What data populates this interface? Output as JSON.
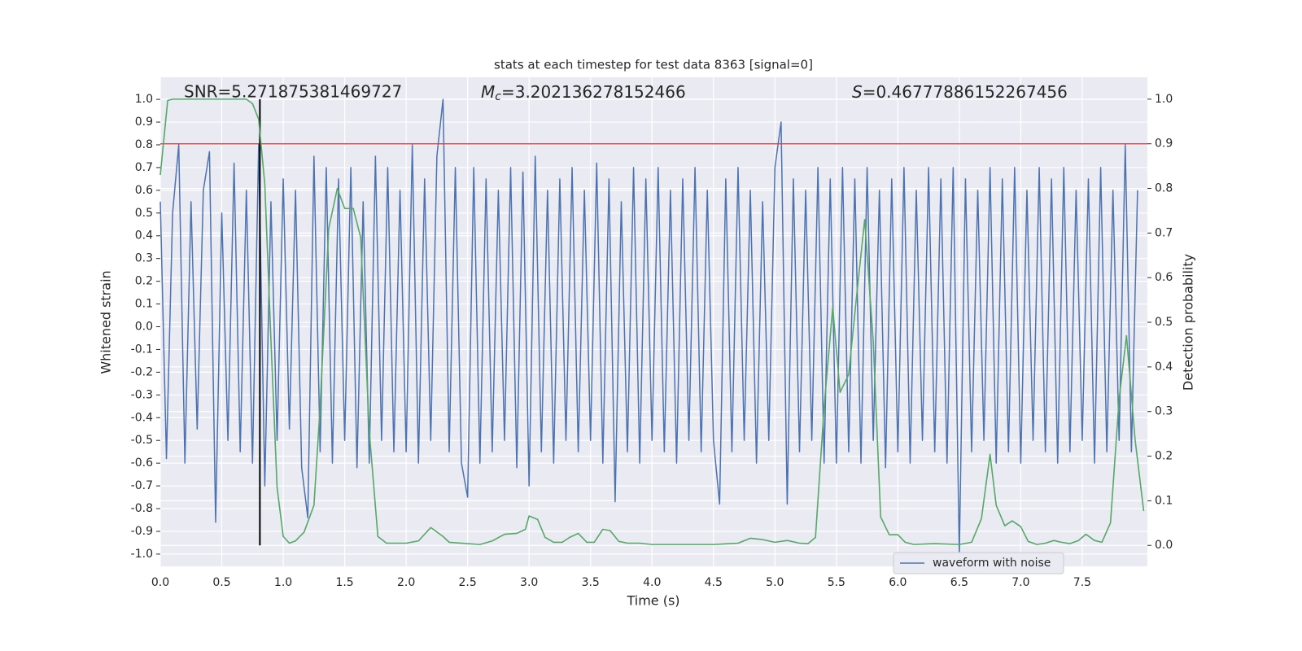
{
  "chart_data": {
    "type": "line",
    "title": "stats at each timestep for test data 8363 [signal=0]",
    "xlabel": "Time (s)",
    "ylabel": "Whitened strain",
    "y2label": "Detection probability",
    "annotations": [
      {
        "text": "SNR=5.271875381469727"
      },
      {
        "symbol": "M",
        "subscript": "c",
        "text": "=3.202136278152466"
      },
      {
        "symbol": "S",
        "text": "=0.46777886152267456"
      }
    ],
    "xlim": [
      0,
      8.03
    ],
    "ylim": [
      -1.054,
      1.097
    ],
    "y2lim": [
      -0.047,
      1.049
    ],
    "xticks": [
      {
        "value": 0,
        "label": "0.0"
      },
      0.5,
      {
        "value": 1,
        "label": "1.0"
      },
      1.5,
      {
        "value": 2,
        "label": "2.0"
      },
      2.5,
      {
        "value": 3,
        "label": "3.0"
      },
      3.5,
      {
        "value": 4,
        "label": "4.0"
      },
      4.5,
      {
        "value": 5,
        "label": "5.0"
      },
      5.5,
      {
        "value": 6,
        "label": "6.0"
      },
      6.5,
      {
        "value": 7,
        "label": "7.0"
      },
      7.5
    ],
    "yticks": [
      {
        "value": -1,
        "label": "-1.0"
      },
      -0.9,
      -0.8,
      -0.7,
      -0.6,
      -0.5,
      -0.4,
      -0.3,
      -0.2,
      -0.1,
      {
        "value": 0,
        "label": "0.0"
      },
      0.1,
      0.2,
      0.3,
      0.4,
      0.5,
      0.6,
      0.7,
      0.8,
      0.9,
      {
        "value": 1,
        "label": "1.0"
      }
    ],
    "y2ticks": [
      {
        "value": 0,
        "label": "0.0"
      },
      0.1,
      0.2,
      0.3,
      0.4,
      0.5,
      0.6,
      0.7,
      0.8,
      0.9,
      {
        "value": 1,
        "label": "1.0"
      }
    ],
    "grid": true,
    "legend": "lower right",
    "series": [
      {
        "name": "waveform with noise",
        "color": "#4c72b0",
        "x": [
          0,
          0.05,
          0.1,
          0.15,
          0.2,
          0.25,
          0.3,
          0.35,
          0.4,
          0.45,
          0.5,
          0.55,
          0.6,
          0.65,
          0.7,
          0.75,
          0.8,
          0.85,
          0.9,
          0.95,
          1,
          1.05,
          1.1,
          1.15,
          1.2,
          1.25,
          1.3,
          1.35,
          1.4,
          1.45,
          1.5,
          1.55,
          1.6,
          1.65,
          1.7,
          1.75,
          1.8,
          1.85,
          1.9,
          1.95,
          2,
          2.05,
          2.1,
          2.15,
          2.2,
          2.25,
          2.3,
          2.35,
          2.4,
          2.45,
          2.5,
          2.55,
          2.6,
          2.65,
          2.7,
          2.75,
          2.8,
          2.85,
          2.9,
          2.95,
          3,
          3.05,
          3.1,
          3.15,
          3.2,
          3.25,
          3.3,
          3.35,
          3.4,
          3.45,
          3.5,
          3.55,
          3.6,
          3.65,
          3.7,
          3.75,
          3.8,
          3.85,
          3.9,
          3.95,
          4,
          4.05,
          4.1,
          4.15,
          4.2,
          4.25,
          4.3,
          4.35,
          4.4,
          4.45,
          4.5,
          4.55,
          4.6,
          4.65,
          4.7,
          4.75,
          4.8,
          4.85,
          4.9,
          4.95,
          5,
          5.05,
          5.1,
          5.15,
          5.2,
          5.25,
          5.3,
          5.35,
          5.4,
          5.45,
          5.5,
          5.55,
          5.6,
          5.65,
          5.7,
          5.75,
          5.8,
          5.85,
          5.9,
          5.95,
          6,
          6.05,
          6.1,
          6.15,
          6.2,
          6.25,
          6.3,
          6.35,
          6.4,
          6.45,
          6.5,
          6.55,
          6.6,
          6.65,
          6.7,
          6.75,
          6.8,
          6.85,
          6.9,
          6.95,
          7,
          7.05,
          7.1,
          7.15,
          7.2,
          7.25,
          7.3,
          7.35,
          7.4,
          7.45,
          7.5,
          7.55,
          7.6,
          7.65,
          7.7,
          7.75,
          7.8,
          7.85,
          7.9,
          7.95
        ],
        "values": [
          0.55,
          -0.58,
          0.5,
          0.8,
          -0.6,
          0.55,
          -0.45,
          0.6,
          0.77,
          -0.86,
          0.5,
          -0.5,
          0.72,
          -0.55,
          0.6,
          -0.6,
          0.8,
          -0.7,
          0.55,
          -0.5,
          0.65,
          -0.45,
          0.6,
          -0.62,
          -0.84,
          0.75,
          -0.55,
          0.7,
          -0.6,
          0.65,
          -0.5,
          0.7,
          -0.62,
          0.55,
          -0.6,
          0.75,
          -0.5,
          0.7,
          -0.55,
          0.6,
          -0.55,
          0.8,
          -0.6,
          0.65,
          -0.5,
          0.75,
          1.0,
          -0.55,
          0.7,
          -0.6,
          -0.75,
          0.7,
          -0.6,
          0.65,
          -0.55,
          0.6,
          -0.5,
          0.7,
          -0.62,
          0.68,
          -0.7,
          0.75,
          -0.55,
          0.6,
          -0.6,
          0.65,
          -0.5,
          0.7,
          -0.55,
          0.6,
          -0.5,
          0.72,
          -0.6,
          0.65,
          -0.77,
          0.55,
          -0.55,
          0.7,
          -0.6,
          0.65,
          -0.5,
          0.7,
          -0.55,
          0.6,
          -0.6,
          0.65,
          -0.5,
          0.7,
          -0.55,
          0.6,
          -0.5,
          -0.78,
          0.65,
          -0.55,
          0.7,
          -0.5,
          0.6,
          -0.6,
          0.55,
          -0.5,
          0.7,
          0.9,
          -0.78,
          0.65,
          -0.55,
          0.6,
          -0.5,
          0.7,
          -0.6,
          0.65,
          -0.6,
          0.7,
          -0.55,
          0.65,
          -0.6,
          0.7,
          -0.5,
          0.6,
          -0.62,
          0.65,
          -0.55,
          0.7,
          -0.6,
          0.6,
          -0.5,
          0.7,
          -0.55,
          0.65,
          -0.6,
          0.7,
          -1.0,
          0.65,
          -0.55,
          0.6,
          -0.5,
          0.7,
          -0.6,
          0.65,
          -0.55,
          0.7,
          -0.6,
          0.6,
          -0.5,
          0.7,
          -0.55,
          0.65,
          -0.6,
          0.7,
          -0.55,
          0.6,
          -0.5,
          0.65,
          -0.6,
          0.7,
          -0.55,
          0.6,
          -0.5,
          0.8,
          -0.55,
          0.6
        ]
      },
      {
        "name": null,
        "color": "#55a868",
        "axis": "y2",
        "x": [
          0,
          0.06,
          0.1,
          0.7,
          0.75,
          0.8,
          0.85,
          0.9,
          0.95,
          1,
          1.05,
          1.1,
          1.17,
          1.25,
          1.3,
          1.37,
          1.44,
          1.5,
          1.57,
          1.63,
          1.7,
          1.77,
          1.84,
          2,
          2.1,
          2.2,
          2.3,
          2.35,
          2.6,
          2.7,
          2.8,
          2.9,
          2.97,
          3,
          3.07,
          3.13,
          3.2,
          3.27,
          3.33,
          3.4,
          3.47,
          3.53,
          3.6,
          3.66,
          3.73,
          3.8,
          3.9,
          4,
          4.5,
          4.7,
          4.8,
          4.9,
          5,
          5.1,
          5.2,
          5.27,
          5.33,
          5.4,
          5.47,
          5.53,
          5.6,
          5.66,
          5.73,
          5.8,
          5.86,
          5.93,
          6,
          6.06,
          6.13,
          6.3,
          6.5,
          6.6,
          6.68,
          6.75,
          6.8,
          6.87,
          6.93,
          7,
          7.06,
          7.13,
          7.2,
          7.27,
          7.33,
          7.4,
          7.47,
          7.53,
          7.6,
          7.66,
          7.73,
          7.8,
          7.86,
          7.93,
          8
        ],
        "values": [
          0.83,
          0.997,
          1,
          1,
          0.99,
          0.955,
          0.81,
          0.46,
          0.13,
          0.02,
          0.005,
          0.01,
          0.03,
          0.09,
          0.31,
          0.71,
          0.8,
          0.755,
          0.755,
          0.69,
          0.255,
          0.02,
          0.005,
          0.005,
          0.01,
          0.04,
          0.02,
          0.007,
          0.002,
          0.01,
          0.025,
          0.027,
          0.036,
          0.066,
          0.058,
          0.018,
          0.007,
          0.007,
          0.018,
          0.027,
          0.007,
          0.007,
          0.036,
          0.033,
          0.009,
          0.005,
          0.005,
          0.002,
          0.002,
          0.005,
          0.016,
          0.013,
          0.007,
          0.011,
          0.005,
          0.004,
          0.018,
          0.31,
          0.533,
          0.343,
          0.383,
          0.547,
          0.73,
          0.456,
          0.064,
          0.024,
          0.024,
          0.007,
          0.002,
          0.004,
          0.002,
          0.007,
          0.06,
          0.204,
          0.09,
          0.044,
          0.055,
          0.042,
          0.009,
          0.002,
          0.005,
          0.011,
          0.007,
          0.004,
          0.011,
          0.025,
          0.011,
          0.007,
          0.051,
          0.328,
          0.47,
          0.237,
          0.077
        ]
      }
    ],
    "hline": {
      "y2": 0.9,
      "color": "#c44e52"
    },
    "vline": {
      "x": 0.81,
      "y2": [
        0,
        1
      ],
      "color": "#000000"
    }
  }
}
